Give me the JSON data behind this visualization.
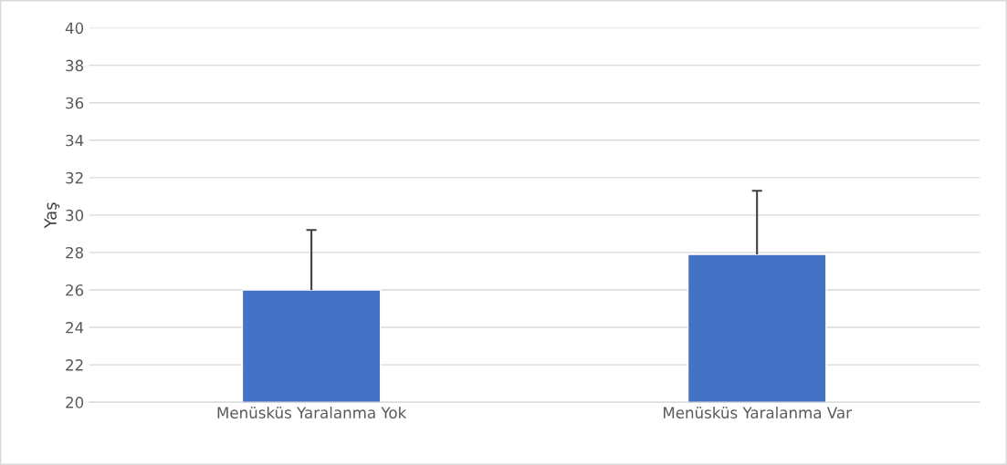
{
  "chart_data": {
    "type": "bar",
    "ylabel": "Yaş",
    "categories": [
      "Menüsküs Yaralanma Yok",
      "Menüsküs Yaralanma Var"
    ],
    "values": [
      26,
      27.9
    ],
    "errors": [
      [
        26,
        29.2
      ],
      [
        27.9,
        31.3
      ]
    ],
    "color": "#4472c4",
    "ylim": [
      20,
      40
    ],
    "yticks": [
      20,
      22,
      24,
      26,
      28,
      30,
      32,
      34,
      36,
      38,
      40
    ],
    "grid": "y",
    "legend": false
  }
}
